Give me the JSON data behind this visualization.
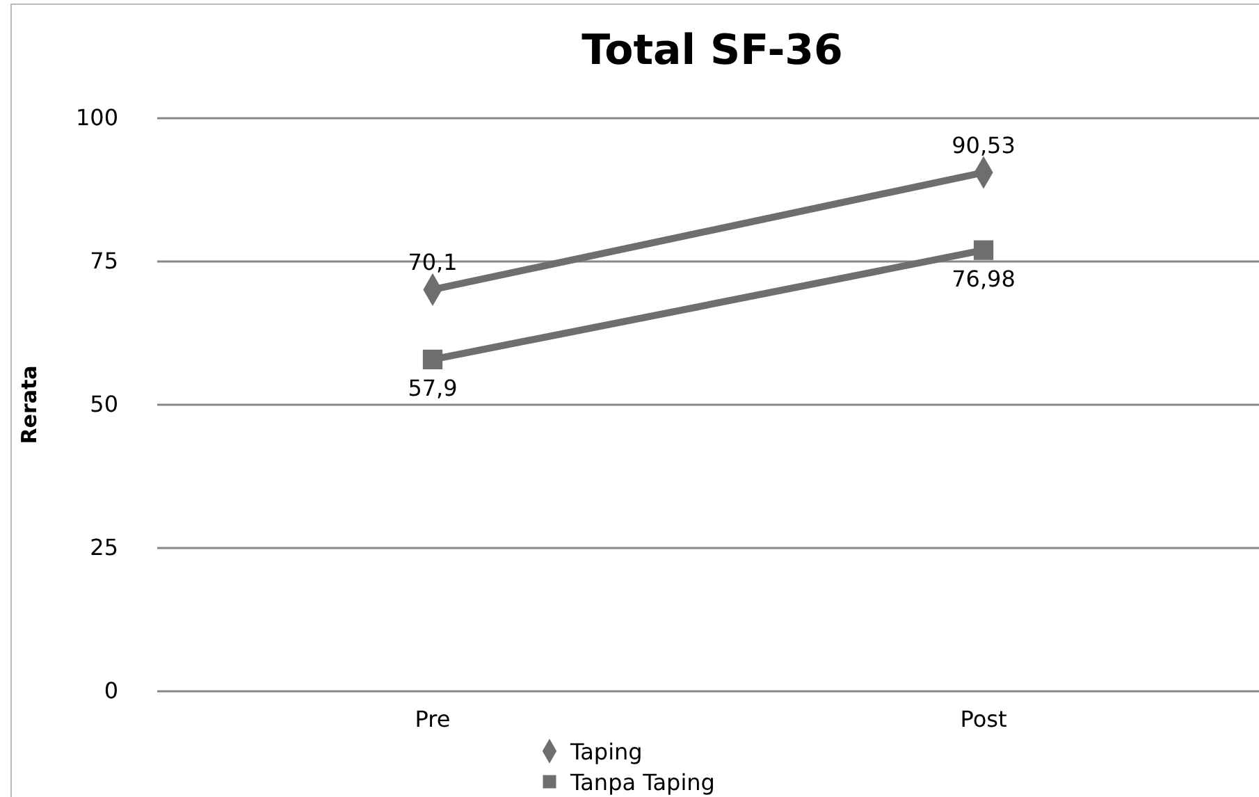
{
  "chart_data": {
    "type": "line",
    "title": "Total SF-36",
    "ylabel": "Rerata",
    "categories": [
      "Pre",
      "Post"
    ],
    "series": [
      {
        "name": "Taping",
        "color": "#6e6e6e",
        "marker": "diamond",
        "values": [
          70.1,
          90.53
        ],
        "value_labels": [
          "70,1",
          "90,53"
        ]
      },
      {
        "name": "Tanpa Taping",
        "color": "#6e6e6e",
        "marker": "square",
        "values": [
          57.9,
          76.98
        ],
        "value_labels": [
          "57,9",
          "76,98"
        ]
      }
    ],
    "ylim": [
      0,
      100
    ],
    "yticks": [
      0,
      25,
      50,
      75,
      100
    ],
    "grid": "y",
    "legend": "bottom"
  }
}
